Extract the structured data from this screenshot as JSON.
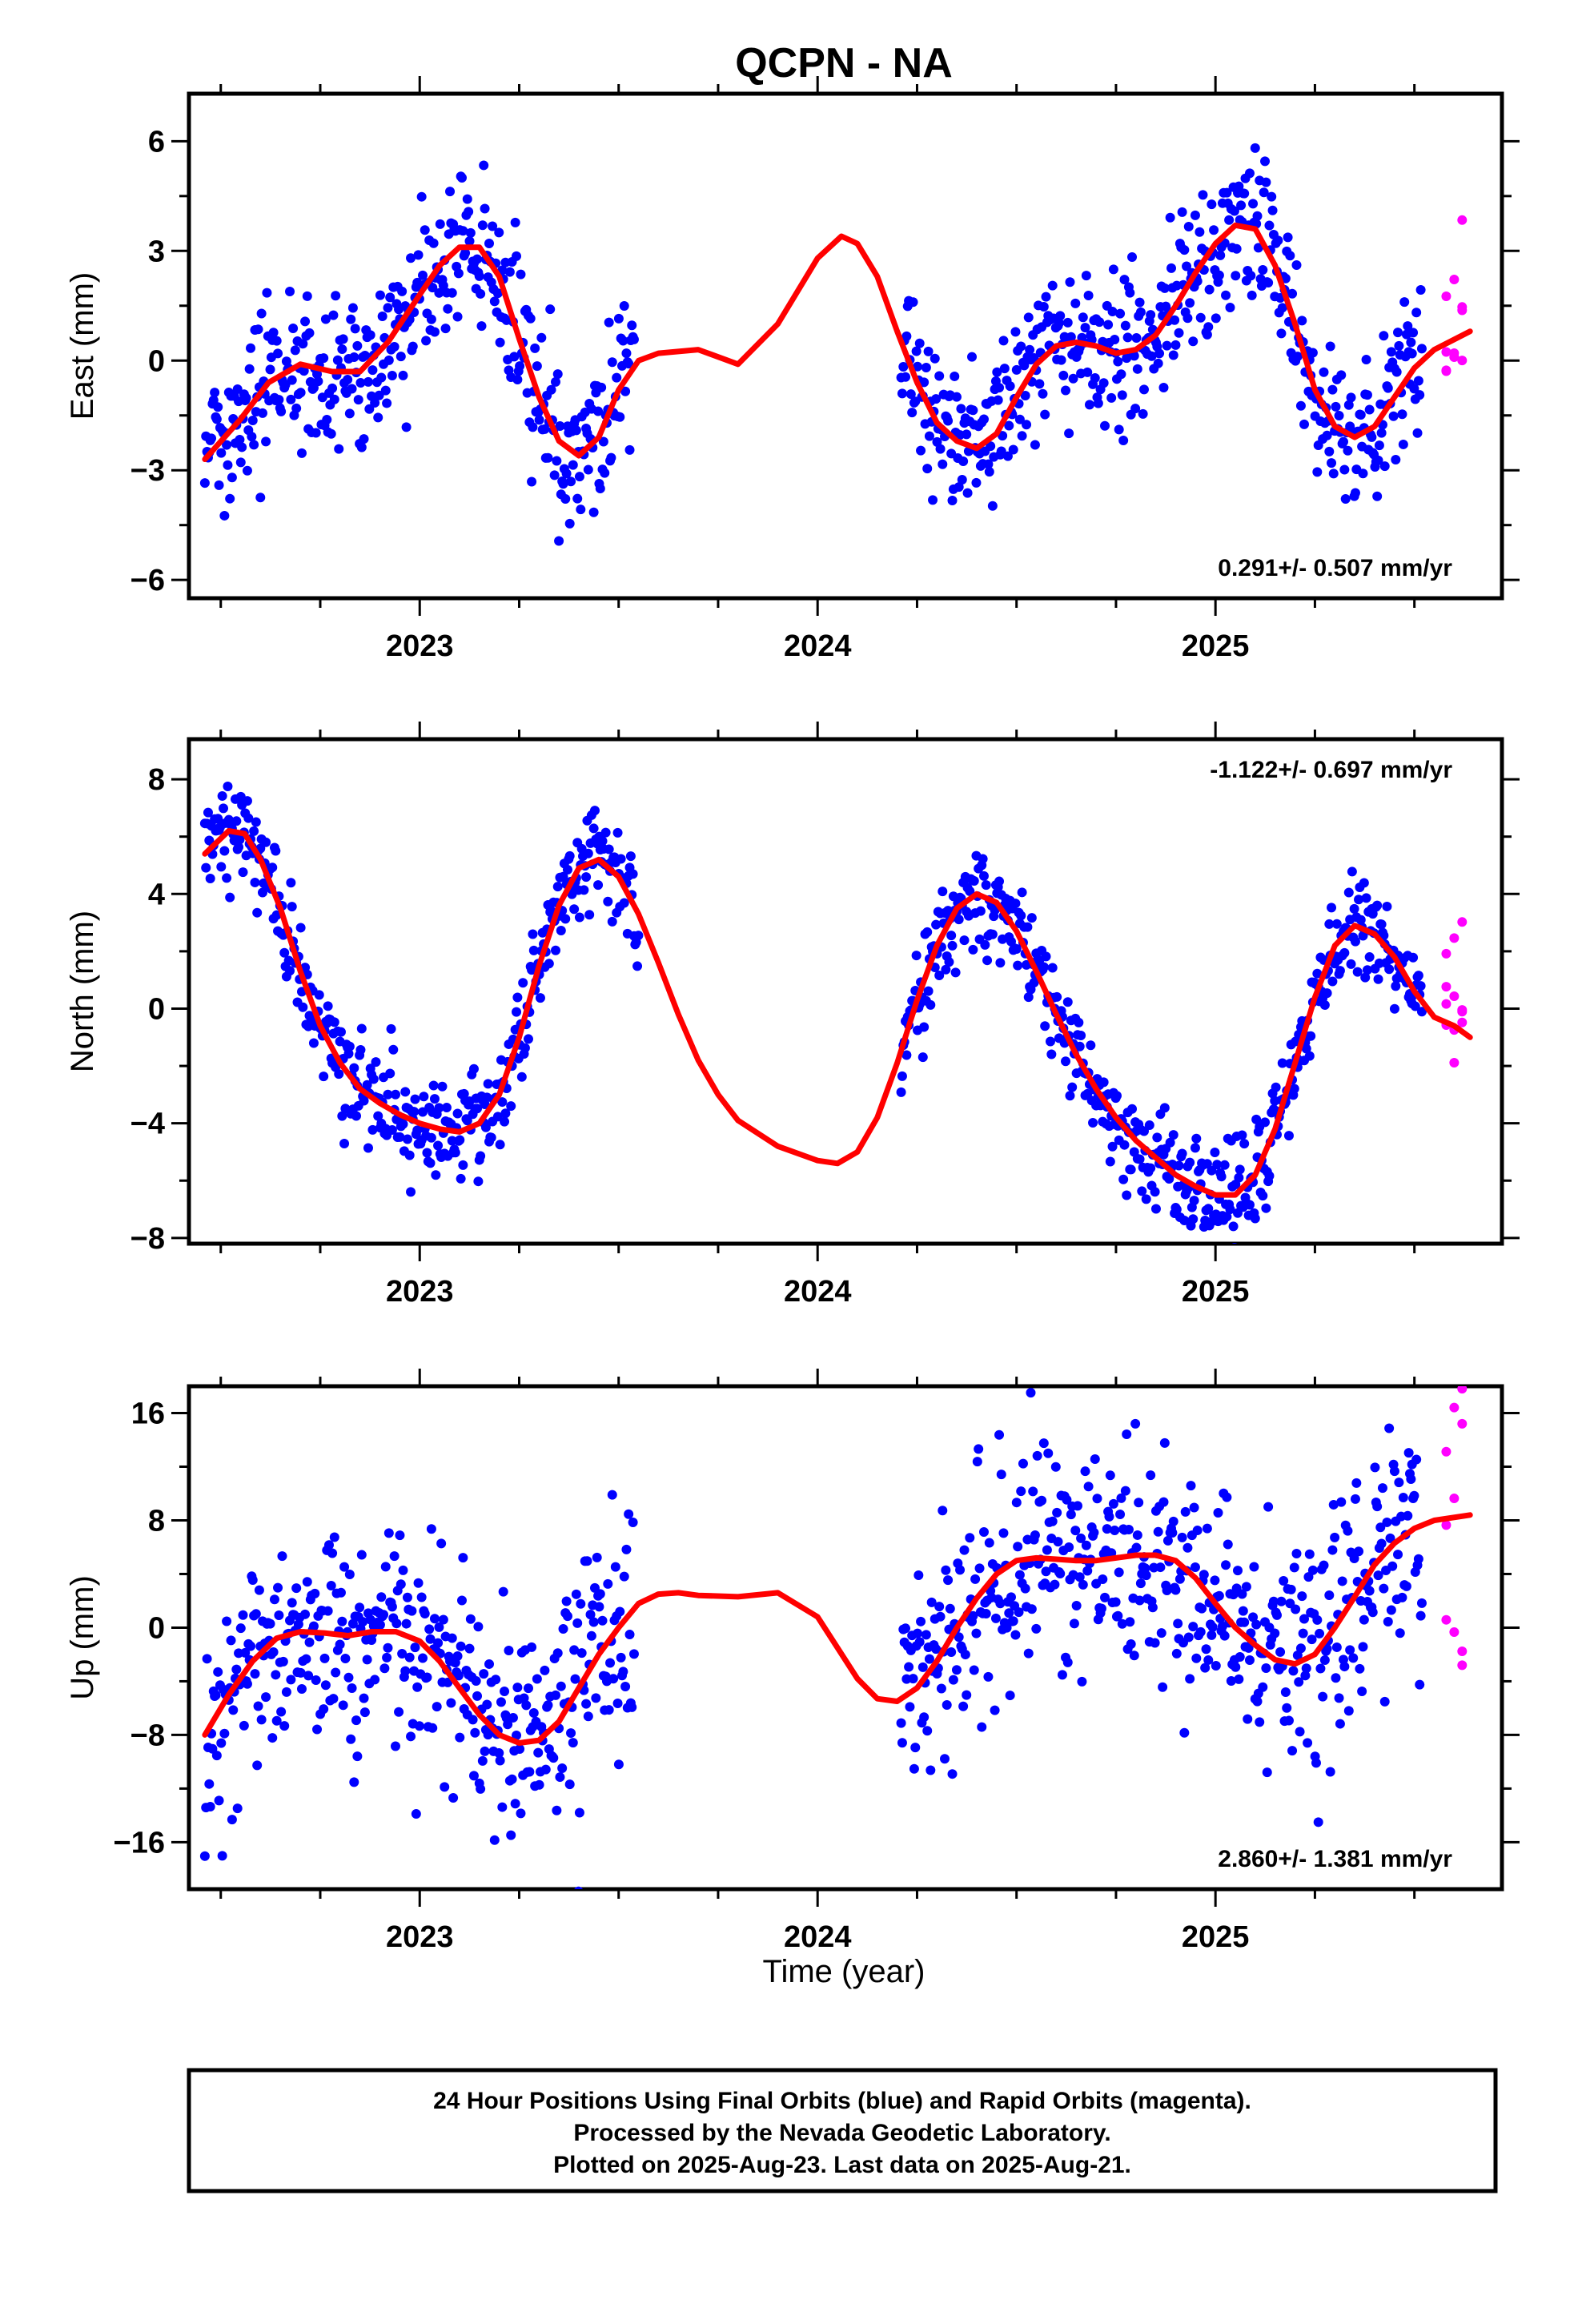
{
  "title": "QCPN - NA",
  "xlabel": "Time (year)",
  "footer": [
    "24 Hour Positions Using Final Orbits (blue) and Rapid Orbits (magenta).",
    "Processed by the Nevada Geodetic Laboratory.",
    "Plotted on 2025-Aug-23. Last data on 2025-Aug-21."
  ],
  "colors": {
    "final": "#0000ff",
    "rapid": "#ff00ff",
    "fit": "#ff0000",
    "frame": "#000000"
  },
  "chart_data": [
    {
      "type": "scatter",
      "name": "east",
      "ylabel": "East (mm)",
      "xlim": [
        2022.42,
        2025.72
      ],
      "ylim": [
        -6.5,
        7.3
      ],
      "xticks": [
        2023,
        2024,
        2025
      ],
      "yticks": [
        -6,
        -3,
        0,
        3,
        6
      ],
      "yticklabels": [
        "−6",
        "−3",
        "0",
        "3",
        "6"
      ],
      "rate": "0.291+/- 0.507 mm/yr",
      "rate_position": "bottom-right",
      "final_segments": [
        [
          2022.46,
          2023.54
        ],
        [
          2024.21,
          2025.52
        ]
      ],
      "rapid_range": [
        2025.58,
        2025.64
      ],
      "fit": {
        "x": [
          2022.46,
          2022.55,
          2022.62,
          2022.7,
          2022.78,
          2022.85,
          2022.92,
          2023.0,
          2023.05,
          2023.1,
          2023.15,
          2023.2,
          2023.25,
          2023.3,
          2023.35,
          2023.4,
          2023.45,
          2023.5,
          2023.55,
          2023.6,
          2023.7,
          2023.8,
          2023.9,
          2024.0,
          2024.06,
          2024.1,
          2024.15,
          2024.2,
          2024.25,
          2024.3,
          2024.35,
          2024.4,
          2024.45,
          2024.5,
          2024.55,
          2024.6,
          2024.65,
          2024.7,
          2024.75,
          2024.8,
          2024.85,
          2024.9,
          2024.95,
          2025.0,
          2025.05,
          2025.1,
          2025.15,
          2025.2,
          2025.25,
          2025.3,
          2025.35,
          2025.4,
          2025.45,
          2025.5,
          2025.55,
          2025.64
        ],
        "y": [
          -2.7,
          -1.6,
          -0.6,
          -0.1,
          -0.3,
          -0.3,
          0.5,
          1.8,
          2.6,
          3.1,
          3.1,
          2.3,
          0.6,
          -1.0,
          -2.2,
          -2.6,
          -2.1,
          -0.8,
          0.0,
          0.2,
          0.3,
          -0.1,
          1.0,
          2.8,
          3.4,
          3.2,
          2.3,
          0.8,
          -0.6,
          -1.7,
          -2.2,
          -2.4,
          -2.0,
          -1.0,
          -0.1,
          0.4,
          0.5,
          0.4,
          0.2,
          0.3,
          0.7,
          1.5,
          2.4,
          3.2,
          3.7,
          3.6,
          2.6,
          1.0,
          -0.8,
          -1.8,
          -2.1,
          -1.8,
          -1.0,
          -0.2,
          0.3,
          0.8
        ]
      },
      "noise_sd": 1.0
    },
    {
      "type": "scatter",
      "name": "north",
      "ylabel": "North (mm)",
      "xlim": [
        2022.42,
        2025.72
      ],
      "ylim": [
        -8.2,
        9.4
      ],
      "xticks": [
        2023,
        2024,
        2025
      ],
      "yticks": [
        -8,
        -4,
        0,
        4,
        8
      ],
      "yticklabels": [
        "−8",
        "−4",
        "0",
        "4",
        "8"
      ],
      "rate": "-1.122+/- 0.697 mm/yr",
      "rate_position": "top-right",
      "final_segments": [
        [
          2022.46,
          2023.55
        ],
        [
          2024.21,
          2025.52
        ]
      ],
      "rapid_range": [
        2025.58,
        2025.64
      ],
      "fit": {
        "x": [
          2022.46,
          2022.52,
          2022.56,
          2022.6,
          2022.65,
          2022.7,
          2022.75,
          2022.8,
          2022.85,
          2022.9,
          2022.95,
          2023.0,
          2023.05,
          2023.1,
          2023.15,
          2023.2,
          2023.25,
          2023.3,
          2023.35,
          2023.4,
          2023.45,
          2023.5,
          2023.55,
          2023.6,
          2023.65,
          2023.7,
          2023.75,
          2023.8,
          2023.9,
          2024.0,
          2024.05,
          2024.1,
          2024.15,
          2024.2,
          2024.25,
          2024.3,
          2024.35,
          2024.4,
          2024.45,
          2024.5,
          2024.55,
          2024.6,
          2024.65,
          2024.7,
          2024.75,
          2024.8,
          2024.85,
          2024.9,
          2024.95,
          2025.0,
          2025.05,
          2025.1,
          2025.15,
          2025.2,
          2025.25,
          2025.3,
          2025.35,
          2025.4,
          2025.45,
          2025.5,
          2025.55,
          2025.6,
          2025.64
        ],
        "y": [
          5.4,
          6.2,
          6.1,
          5.2,
          3.5,
          1.3,
          -0.6,
          -1.9,
          -2.8,
          -3.3,
          -3.7,
          -4.0,
          -4.2,
          -4.3,
          -4.0,
          -3.0,
          -1.0,
          1.5,
          3.6,
          4.9,
          5.2,
          4.6,
          3.3,
          1.6,
          -0.2,
          -1.8,
          -3.0,
          -3.9,
          -4.8,
          -5.3,
          -5.4,
          -5.0,
          -3.8,
          -1.9,
          0.3,
          2.2,
          3.5,
          4.0,
          3.7,
          2.7,
          1.3,
          -0.2,
          -1.6,
          -2.8,
          -3.8,
          -4.6,
          -5.2,
          -5.8,
          -6.2,
          -6.5,
          -6.5,
          -5.8,
          -4.2,
          -1.9,
          0.4,
          2.2,
          2.9,
          2.6,
          1.8,
          0.6,
          -0.3,
          -0.6,
          -1.0
        ]
      },
      "noise_sd": 0.9
    },
    {
      "type": "scatter",
      "name": "up",
      "ylabel": "Up (mm)",
      "xlim": [
        2022.42,
        2025.72
      ],
      "ylim": [
        -19.5,
        18.0
      ],
      "xticks": [
        2023,
        2024,
        2025
      ],
      "yticks": [
        -16,
        -8,
        0,
        8,
        16
      ],
      "yticklabels": [
        "−16",
        "−8",
        "0",
        "8",
        "16"
      ],
      "rate": "2.860+/- 1.381 mm/yr",
      "rate_position": "bottom-right",
      "final_segments": [
        [
          2022.46,
          2023.54
        ],
        [
          2024.21,
          2025.52
        ]
      ],
      "rapid_range": [
        2025.58,
        2025.64
      ],
      "fit": {
        "x": [
          2022.46,
          2022.52,
          2022.58,
          2022.64,
          2022.7,
          2022.76,
          2022.82,
          2022.88,
          2022.94,
          2023.0,
          2023.05,
          2023.1,
          2023.15,
          2023.2,
          2023.25,
          2023.3,
          2023.35,
          2023.4,
          2023.45,
          2023.5,
          2023.55,
          2023.6,
          2023.65,
          2023.7,
          2023.8,
          2023.9,
          2024.0,
          2024.05,
          2024.1,
          2024.15,
          2024.2,
          2024.25,
          2024.3,
          2024.35,
          2024.4,
          2024.45,
          2024.5,
          2024.55,
          2024.6,
          2024.65,
          2024.7,
          2024.75,
          2024.8,
          2024.85,
          2024.9,
          2024.95,
          2025.0,
          2025.05,
          2025.1,
          2025.15,
          2025.2,
          2025.25,
          2025.3,
          2025.35,
          2025.4,
          2025.45,
          2025.5,
          2025.55,
          2025.64
        ],
        "y": [
          -8.0,
          -5.0,
          -2.5,
          -0.8,
          -0.3,
          -0.4,
          -0.6,
          -0.3,
          -0.3,
          -1.0,
          -2.5,
          -4.5,
          -6.5,
          -8.0,
          -8.6,
          -8.4,
          -7.0,
          -4.5,
          -2.0,
          0.0,
          1.8,
          2.5,
          2.6,
          2.4,
          2.3,
          2.6,
          0.8,
          -1.5,
          -3.8,
          -5.3,
          -5.5,
          -4.5,
          -2.5,
          0.0,
          2.2,
          4.0,
          5.0,
          5.2,
          5.1,
          5.0,
          5.0,
          5.2,
          5.4,
          5.4,
          5.0,
          3.7,
          1.8,
          0.0,
          -1.3,
          -2.4,
          -2.7,
          -2.0,
          0.0,
          2.3,
          4.7,
          6.3,
          7.4,
          8.0,
          8.4
        ]
      },
      "noise_sd": 4.2
    }
  ]
}
